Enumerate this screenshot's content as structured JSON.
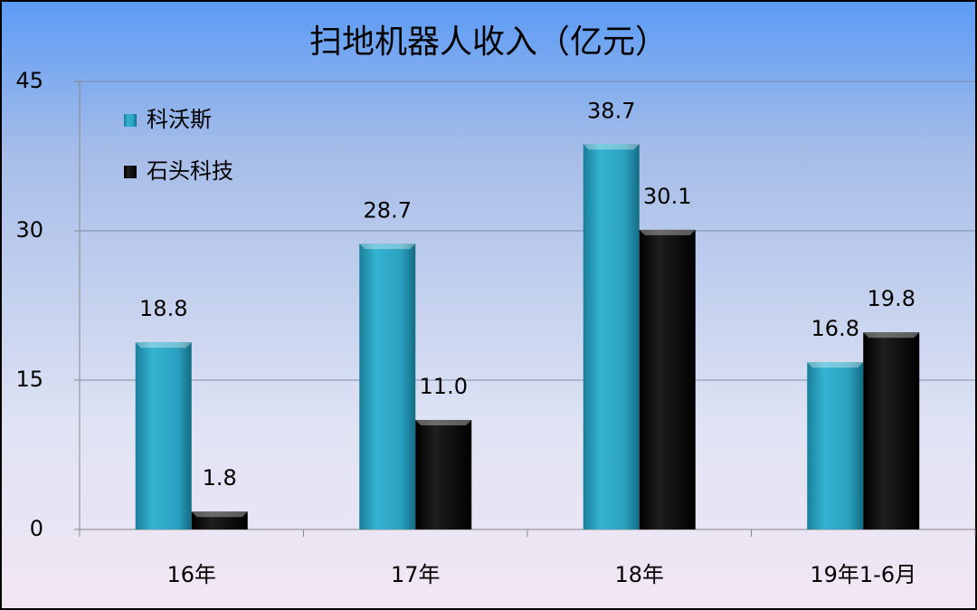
{
  "chart_data": {
    "type": "bar",
    "title": "扫地机器人收入（亿元）",
    "categories": [
      "16年",
      "17年",
      "18年",
      "19年1-6月"
    ],
    "series": [
      {
        "name": "科沃斯",
        "color": "#2fa6c4",
        "values": [
          18.8,
          28.7,
          38.7,
          16.8
        ]
      },
      {
        "name": "石头科技",
        "color": "#0a0a0a",
        "values": [
          1.8,
          11.0,
          30.1,
          19.8
        ],
        "value_labels": [
          "1.8",
          "11.0",
          "30.1",
          "19.8"
        ]
      }
    ],
    "ylim": [
      0,
      45
    ],
    "yticks": [
      0,
      15,
      30,
      45
    ],
    "grid": true,
    "legend": "top-left"
  }
}
